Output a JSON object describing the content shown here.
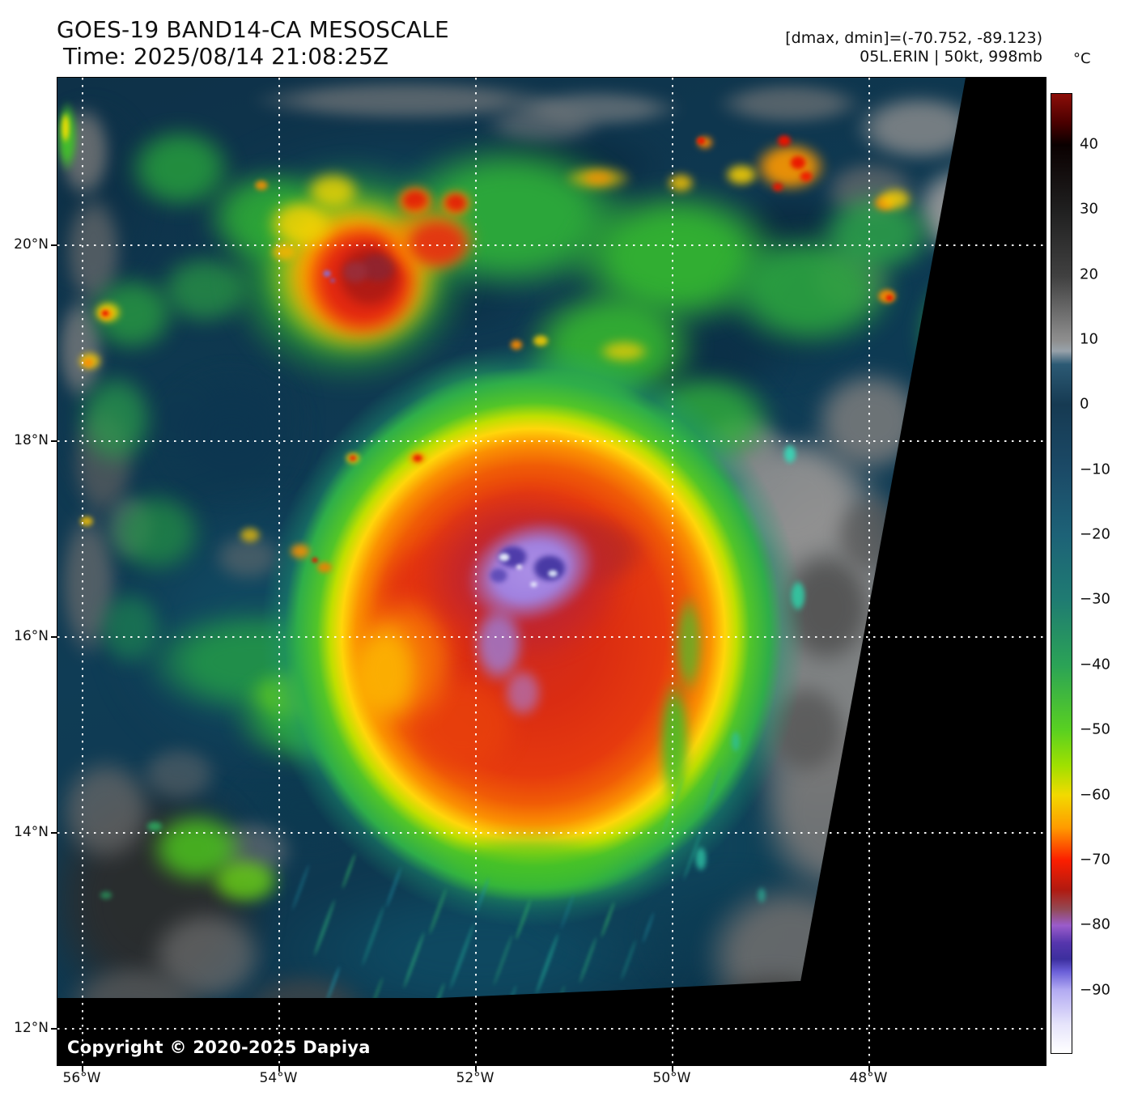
{
  "header": {
    "title": "GOES-19 BAND14-CA MESOSCALE",
    "subtitle": "Time: 2025/08/14 21:08:25Z",
    "stats_line": "[dmax, dmin]=(-70.752, -89.123)",
    "storm_line": "05L.ERIN | 50kt, 998mb"
  },
  "storm": {
    "designation": "05L.ERIN",
    "intensity": "50kt",
    "pressure": "998mb",
    "dmax": -70.752,
    "dmin": -89.123
  },
  "axes": {
    "x_ticks": [
      "56°W",
      "54°W",
      "52°W",
      "50°W",
      "48°W"
    ],
    "y_ticks": [
      "20°N",
      "18°N",
      "16°N",
      "14°N",
      "12°N"
    ]
  },
  "colorbar": {
    "unit": "°C",
    "ticks": [
      "40",
      "30",
      "20",
      "10",
      "0",
      "−10",
      "−20",
      "−30",
      "−40",
      "−50",
      "−60",
      "−70",
      "−80",
      "−90"
    ],
    "gradient": [
      [
        0.0,
        "#8c0d08"
      ],
      [
        0.03,
        "#4a0000"
      ],
      [
        0.053,
        "#0a0000"
      ],
      [
        0.12,
        "#1f1f1f"
      ],
      [
        0.19,
        "#404040"
      ],
      [
        0.25,
        "#878787"
      ],
      [
        0.257,
        "#8e8e8e"
      ],
      [
        0.268,
        "#98a2aa"
      ],
      [
        0.282,
        "#2c5a74"
      ],
      [
        0.324,
        "#163a52"
      ],
      [
        0.392,
        "#1b4a67"
      ],
      [
        0.46,
        "#1d6277"
      ],
      [
        0.527,
        "#1f7b72"
      ],
      [
        0.596,
        "#2ba356"
      ],
      [
        0.663,
        "#59d021"
      ],
      [
        0.7,
        "#9fe000"
      ],
      [
        0.731,
        "#f2da00"
      ],
      [
        0.765,
        "#ff9b00"
      ],
      [
        0.799,
        "#fb1e00"
      ],
      [
        0.83,
        "#b11a10"
      ],
      [
        0.85,
        "#934a55"
      ],
      [
        0.867,
        "#9a5ccb"
      ],
      [
        0.885,
        "#5636ad"
      ],
      [
        0.902,
        "#3c2f9e"
      ],
      [
        0.915,
        "#6a5fd8"
      ],
      [
        0.934,
        "#b2aaf2"
      ],
      [
        0.97,
        "#e6e4fb"
      ],
      [
        1.0,
        "#ffffff"
      ]
    ]
  },
  "footer": {
    "copyright": "Copyright © 2020-2025 Dapiya"
  }
}
